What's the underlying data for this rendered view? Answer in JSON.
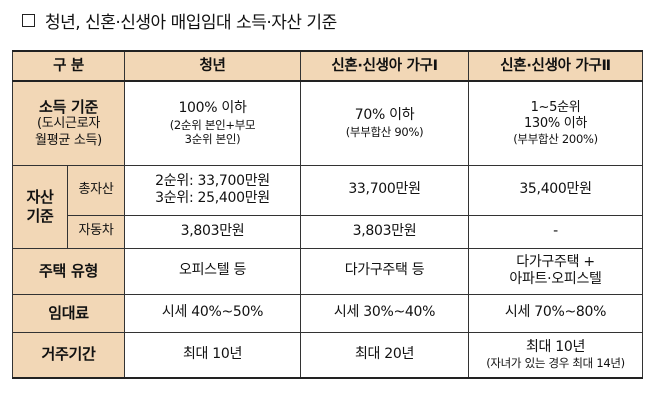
{
  "title": "청년, 신혼·신생아 매입임대 소득·자산 기준",
  "header": {
    "col0": "구 분",
    "col1": "청년",
    "col2": "신혼·신생아 가구Ⅰ",
    "col3": "신혼·신생아 가구Ⅱ"
  },
  "income": {
    "label": "소득 기준",
    "sub1": "(도시근로자",
    "sub2": "월평균 소득)",
    "youth_main": "100% 이하",
    "youth_sub1": "(2순위 본인+부모",
    "youth_sub2": "3순위 본인)",
    "n1_main": "70% 이하",
    "n1_sub": "(부부합산 90%)",
    "n2_main1": "1~5순위",
    "n2_main2": "130% 이하",
    "n2_sub": "(부부합산 200%)"
  },
  "assets": {
    "label1": "자산",
    "label2": "기준",
    "total_label": "총자산",
    "youth_total1": "2순위: 33,700만원",
    "youth_total2": "3순위: 25,400만원",
    "n1_total": "33,700만원",
    "n2_total": "35,400만원",
    "car_label": "자동차",
    "youth_car": "3,803만원",
    "n1_car": "3,803만원",
    "n2_car": "-"
  },
  "housing": {
    "label": "주택 유형",
    "youth": "오피스텔 등",
    "n1": "다가구주택 등",
    "n2_line1": "다가구주택 +",
    "n2_line2": "아파트·오피스텔"
  },
  "rent": {
    "label": "임대료",
    "youth": "시세 40%~50%",
    "n1": "시세 30%~40%",
    "n2": "시세 70%~80%"
  },
  "residence": {
    "label": "거주기간",
    "youth": "최대 10년",
    "n1": "최대 20년",
    "n2_main": "최대 10년",
    "n2_sub": "(자녀가 있는 경우 최대 14년)"
  }
}
